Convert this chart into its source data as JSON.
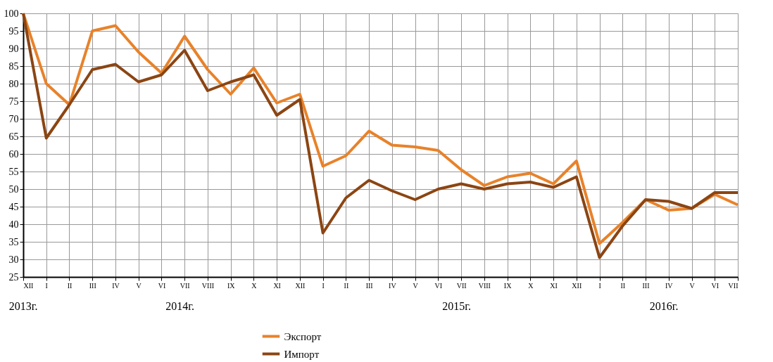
{
  "chart_data": {
    "type": "line",
    "categories": [
      "XII",
      "I",
      "II",
      "III",
      "IV",
      "V",
      "VI",
      "VII",
      "VIII",
      "IX",
      "X",
      "XI",
      "XII",
      "I",
      "II",
      "III",
      "IV",
      "V",
      "VI",
      "VII",
      "VIII",
      "IX",
      "X",
      "XI",
      "XII",
      "I",
      "II",
      "III",
      "IV",
      "V",
      "VI",
      "VII"
    ],
    "series": [
      {
        "name": "Экспорт",
        "color": "#e8822a",
        "values": [
          100,
          80,
          74,
          95,
          96.5,
          89,
          83,
          93.5,
          84,
          77,
          84.5,
          74.5,
          77,
          56.5,
          59.5,
          66.5,
          62.5,
          62,
          61,
          55.5,
          51,
          53.5,
          54.5,
          51.5,
          58,
          34.5,
          40.5,
          47,
          44,
          44.5,
          48.5,
          45.5
        ]
      },
      {
        "name": "Импорт",
        "color": "#8b4513",
        "values": [
          100,
          64.5,
          74,
          84,
          85.5,
          80.5,
          82.5,
          89.5,
          78,
          80.5,
          82.5,
          71,
          75.5,
          37.5,
          47.5,
          52.5,
          49.5,
          47,
          50,
          51.5,
          50,
          51.5,
          52,
          50.5,
          53.5,
          30.5,
          39.5,
          47,
          46.5,
          44.5,
          49,
          49
        ]
      }
    ],
    "ylim": [
      25,
      100
    ],
    "yticks": [
      25,
      30,
      35,
      40,
      45,
      50,
      55,
      60,
      65,
      70,
      75,
      80,
      85,
      90,
      95,
      100
    ],
    "grid": true,
    "legend": "bottom",
    "marker": "none",
    "line_style": "solid",
    "annotations": [
      "2013г.",
      "2014г.",
      "2015г.",
      "2016г."
    ]
  }
}
